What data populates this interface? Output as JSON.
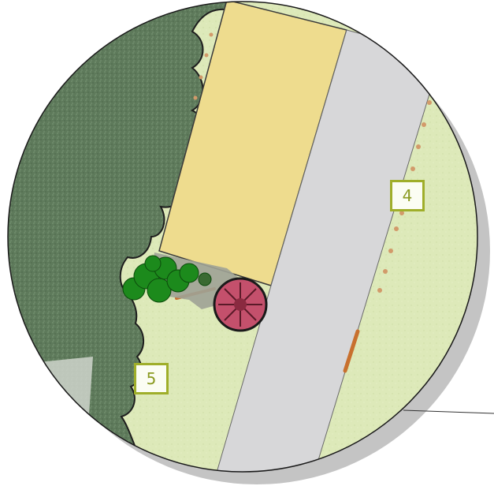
{
  "labels": {
    "zone_4": "4",
    "zone_5": "5"
  },
  "colors": {
    "lawn": "#dce9b8",
    "tree_canopy": "#5e7a5b",
    "patio_yellow": "#eedc8e",
    "path_grey": "#d7d7d9",
    "shadow": "#c4c4c4",
    "shrub_green": "#1c8a1c",
    "red_shrub": "#c4506c",
    "label_border": "#9fae2a",
    "edging_orange": "#c8702e"
  }
}
